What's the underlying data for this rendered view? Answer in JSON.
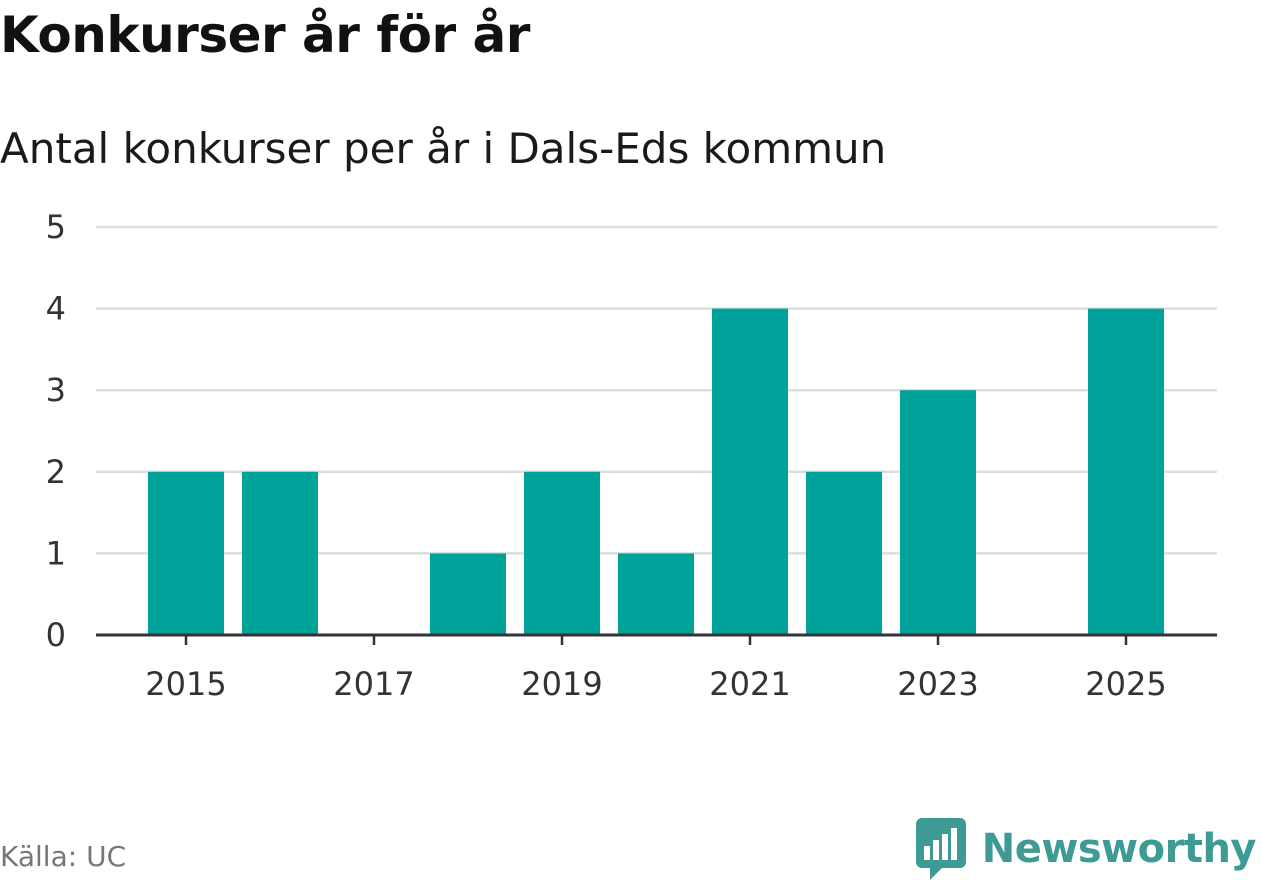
{
  "header": {
    "title": "Konkurser år för år",
    "subtitle": "Antal konkurser per år i Dals-Eds kommun"
  },
  "footer": {
    "source": "Källa: UC",
    "brand": "Newsworthy",
    "logo_icon": "newsworthy-chart-bubble-icon"
  },
  "colors": {
    "bar": "#00a39a",
    "grid": "#dddddd",
    "axis": "#333333",
    "brand": "#3d9a94"
  },
  "chart_data": {
    "type": "bar",
    "title": "Konkurser år för år",
    "subtitle": "Antal konkurser per år i Dals-Eds kommun",
    "categories": [
      2015,
      2016,
      2017,
      2018,
      2019,
      2020,
      2021,
      2022,
      2023,
      2024,
      2025
    ],
    "values": [
      2,
      2,
      0,
      1,
      2,
      1,
      4,
      2,
      3,
      0,
      4
    ],
    "x_tick_labels": [
      "2015",
      "2017",
      "2019",
      "2021",
      "2023",
      "2025"
    ],
    "y_ticks": [
      0,
      1,
      2,
      3,
      4,
      5
    ],
    "ylim": [
      0,
      5
    ],
    "xlabel": "",
    "ylabel": "",
    "grid": true,
    "legend": "none"
  }
}
